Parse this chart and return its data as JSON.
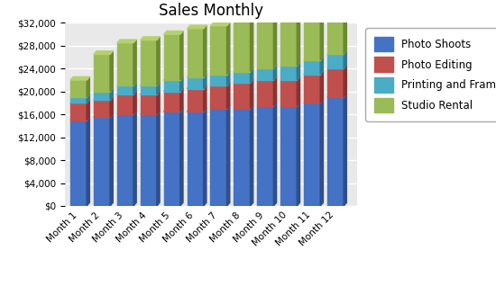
{
  "title": "Sales Monthly",
  "categories": [
    "Month 1",
    "Month 2",
    "Month 3",
    "Month 4",
    "Month 5",
    "Month 6",
    "Month 7",
    "Month 8",
    "Month 9",
    "Month 10",
    "Month 11",
    "Month 12"
  ],
  "series": [
    {
      "name": "Photo Shoots",
      "color": "#4472C4",
      "dark_color": "#2E4F8C",
      "top_color": "#5B8DD9",
      "values": [
        15000,
        15500,
        16000,
        16000,
        16500,
        16500,
        17000,
        17000,
        17500,
        17500,
        18000,
        19000
      ]
    },
    {
      "name": "Photo Editing",
      "color": "#C0504D",
      "dark_color": "#8B3230",
      "top_color": "#D4706E",
      "values": [
        3000,
        3000,
        3500,
        3500,
        3500,
        4000,
        4000,
        4500,
        4500,
        4500,
        5000,
        5000
      ]
    },
    {
      "name": "Printing and Framing",
      "color": "#4BACC6",
      "dark_color": "#2E7A91",
      "top_color": "#6DC4D9",
      "values": [
        1000,
        1500,
        1500,
        1500,
        2000,
        2000,
        2000,
        2000,
        2000,
        2500,
        2500,
        2500
      ]
    },
    {
      "name": "Studio Rental",
      "color": "#9BBB59",
      "dark_color": "#6B8A2E",
      "top_color": "#B5D16E",
      "values": [
        3000,
        6500,
        7500,
        8000,
        8000,
        8500,
        8500,
        9000,
        8500,
        8000,
        7500,
        6500
      ]
    }
  ],
  "ylim": [
    0,
    32000
  ],
  "yticks": [
    0,
    4000,
    8000,
    12000,
    16000,
    20000,
    24000,
    28000,
    32000
  ],
  "background_color": "#FFFFFF",
  "plot_bg_color": "#E9E9E9",
  "grid_color": "#FFFFFF",
  "title_fontsize": 12,
  "tick_fontsize": 7.5,
  "legend_fontsize": 8.5,
  "depth": 0.03,
  "bar_width": 0.7
}
